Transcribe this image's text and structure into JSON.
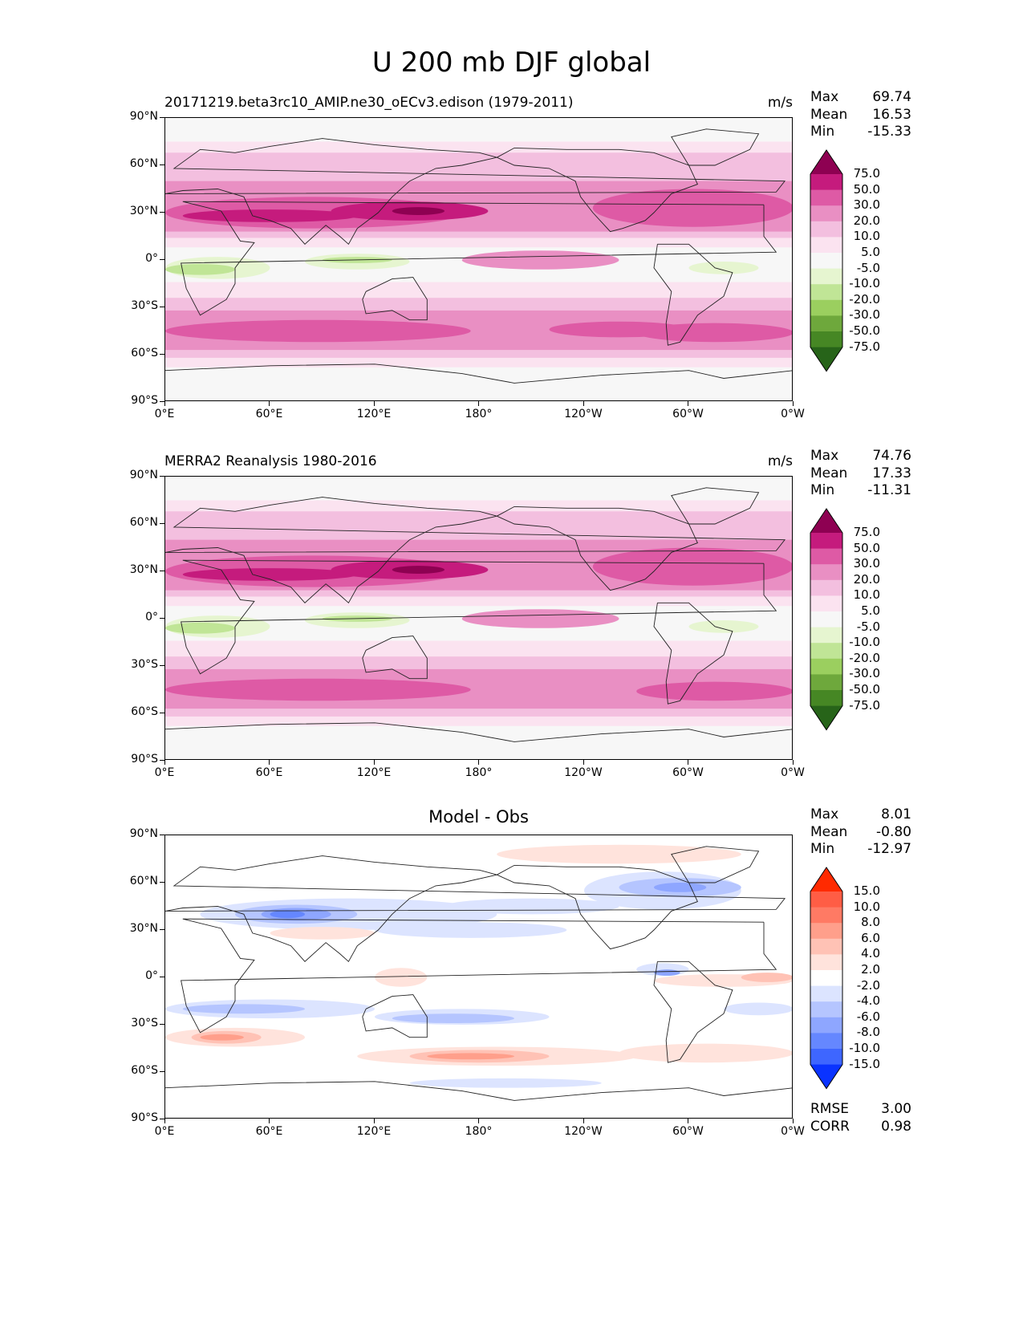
{
  "title": "U 200 mb DJF global",
  "panels": [
    {
      "title": "20171219.beta3rc10_AMIP.ne30_oECv3.edison (1979-2011)",
      "units": "m/s",
      "stats": [
        {
          "label": "Max",
          "value": "69.74"
        },
        {
          "label": "Mean",
          "value": "16.53"
        },
        {
          "label": "Min",
          "value": "-15.33"
        }
      ]
    },
    {
      "title": "MERRA2 Reanalysis 1980-2016",
      "units": "m/s",
      "stats": [
        {
          "label": "Max",
          "value": "74.76"
        },
        {
          "label": "Mean",
          "value": "17.33"
        },
        {
          "label": "Min",
          "value": "-11.31"
        }
      ]
    },
    {
      "title": "Model - Obs",
      "units": "",
      "stats": [
        {
          "label": "Max",
          "value": "8.01"
        },
        {
          "label": "Mean",
          "value": "-0.80"
        },
        {
          "label": "Min",
          "value": "-12.97"
        }
      ],
      "extra_stats": [
        {
          "label": "RMSE",
          "value": "3.00"
        },
        {
          "label": "CORR",
          "value": "0.98"
        }
      ]
    }
  ],
  "axes": {
    "x_ticks": [
      "0°E",
      "60°E",
      "120°E",
      "180°",
      "120°W",
      "60°W",
      "0°W"
    ],
    "y_ticks": [
      "90°N",
      "60°N",
      "30°N",
      "0°",
      "30°S",
      "60°S",
      "90°S"
    ]
  },
  "colorbars": {
    "field": {
      "labels": [
        "75.0",
        "50.0",
        "30.0",
        "20.0",
        "10.0",
        "5.0",
        "-5.0",
        "-10.0",
        "-20.0",
        "-30.0",
        "-50.0",
        "-75.0"
      ],
      "colors": [
        "#8e0152",
        "#c51b7d",
        "#de5aa5",
        "#e98fc3",
        "#f3bfdf",
        "#fbe3f0",
        "#f7f7f7",
        "#e6f5d0",
        "#c0e596",
        "#9bcf5f",
        "#6ea83c",
        "#468724",
        "#276419"
      ]
    },
    "diff": {
      "labels": [
        "15.0",
        "10.0",
        "8.0",
        "6.0",
        "4.0",
        "2.0",
        "-2.0",
        "-4.0",
        "-6.0",
        "-8.0",
        "-10.0",
        "-15.0"
      ],
      "colors": [
        "#ff2a00",
        "#ff5d45",
        "#ff7a64",
        "#ff9f8b",
        "#ffc2b5",
        "#ffe3dc",
        "#ffffff",
        "#dce4ff",
        "#b5c5ff",
        "#8ea6ff",
        "#6587ff",
        "#3e66ff",
        "#0a33ff"
      ]
    }
  },
  "chart_data": [
    {
      "type": "heatmap",
      "title": "20171219.beta3rc10_AMIP.ne30_oECv3.edison (1979-2011)",
      "units": "m/s",
      "xlim": [
        0,
        360
      ],
      "ylim": [
        -90,
        90
      ],
      "levels": [
        -75,
        -50,
        -30,
        -20,
        -10,
        -5,
        5,
        10,
        20,
        30,
        50,
        75
      ],
      "max": 69.74,
      "mean": 16.53,
      "min": -15.33
    },
    {
      "type": "heatmap",
      "title": "MERRA2 Reanalysis 1980-2016",
      "units": "m/s",
      "xlim": [
        0,
        360
      ],
      "ylim": [
        -90,
        90
      ],
      "levels": [
        -75,
        -50,
        -30,
        -20,
        -10,
        -5,
        5,
        10,
        20,
        30,
        50,
        75
      ],
      "max": 74.76,
      "mean": 17.33,
      "min": -11.31
    },
    {
      "type": "heatmap",
      "title": "Model - Obs",
      "xlim": [
        0,
        360
      ],
      "ylim": [
        -90,
        90
      ],
      "levels": [
        -15,
        -10,
        -8,
        -6,
        -4,
        -2,
        2,
        4,
        6,
        8,
        10,
        15
      ],
      "max": 8.01,
      "mean": -0.8,
      "min": -12.97,
      "rmse": 3.0,
      "corr": 0.98
    }
  ]
}
